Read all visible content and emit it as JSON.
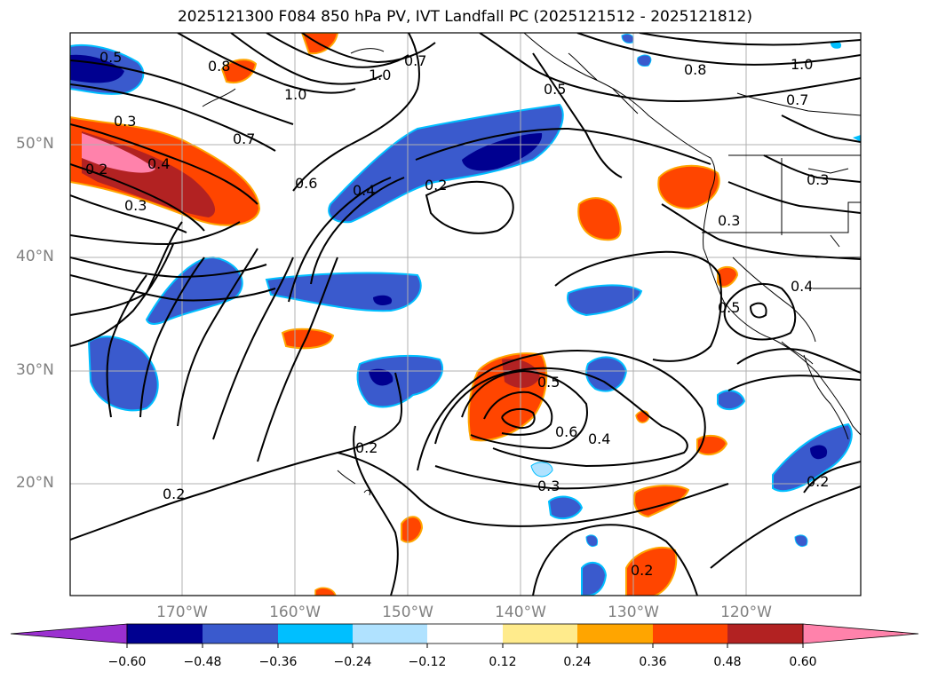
{
  "title": "2025121300 F084 850 hPa PV, IVT Landfall PC (2025121512 - 2025121812)",
  "lat_labels": [
    "50°N",
    "40°N",
    "30°N",
    "20°N"
  ],
  "lon_labels": [
    "170°W",
    "160°W",
    "150°W",
    "140°W",
    "130°W",
    "120°W"
  ],
  "colorbar": {
    "tick_labels": [
      "−0.60",
      "−0.48",
      "−0.36",
      "−0.24",
      "−0.12",
      "0.12",
      "0.24",
      "0.36",
      "0.48",
      "0.60"
    ],
    "colors": [
      "#9b30d0",
      "#000090",
      "#3a5acd",
      "#00bfff",
      "#b0e2ff",
      "#ffffff",
      "#ffeb8c",
      "#ffa500",
      "#ff4500",
      "#b22222",
      "#ff82ab"
    ]
  },
  "contour_labels": [
    "0.5",
    "0.8",
    "1.0",
    "1.0",
    "0.7",
    "0.5",
    "0.8",
    "1.0",
    "0.7",
    "0.7",
    "0.3",
    "0.2",
    "0.4",
    "0.3",
    "0.6",
    "0.4",
    "0.2",
    "0.3",
    "0.3",
    "0.4",
    "0.5",
    "0.5",
    "0.6",
    "0.4",
    "0.3",
    "0.2",
    "0.2",
    "0.2",
    "0.2"
  ]
}
